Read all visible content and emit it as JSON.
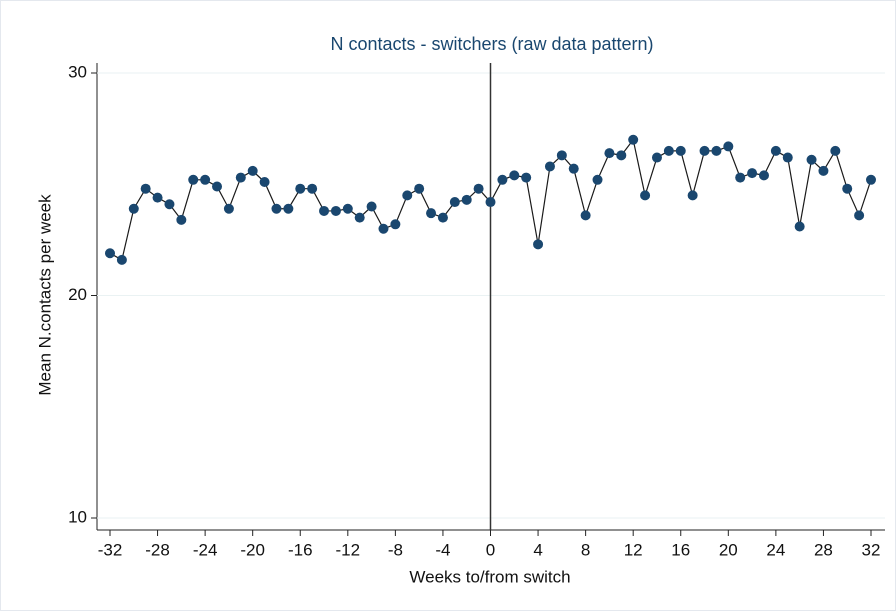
{
  "chart_data": {
    "type": "line",
    "title": "N contacts - switchers (raw data pattern)",
    "x_label": "Weeks to/from switch",
    "y_label": "Mean N.contacts per week",
    "x": [
      -32,
      -31,
      -30,
      -29,
      -28,
      -27,
      -26,
      -25,
      -24,
      -23,
      -22,
      -21,
      -20,
      -19,
      -18,
      -17,
      -16,
      -15,
      -14,
      -13,
      -12,
      -11,
      -10,
      -9,
      -8,
      -7,
      -6,
      -5,
      -4,
      -3,
      -2,
      -1,
      0,
      1,
      2,
      3,
      4,
      5,
      6,
      7,
      8,
      9,
      10,
      11,
      12,
      13,
      14,
      15,
      16,
      17,
      18,
      19,
      20,
      21,
      22,
      23,
      24,
      25,
      26,
      27,
      28,
      29,
      30,
      31,
      32
    ],
    "series": [
      {
        "name": "Mean N.contacts",
        "color": "#1a476f",
        "line_color": "#1a1a1a",
        "values": [
          21.9,
          21.6,
          23.9,
          24.8,
          24.4,
          24.1,
          23.4,
          25.2,
          25.2,
          24.9,
          23.9,
          25.3,
          25.6,
          25.1,
          23.9,
          23.9,
          24.8,
          24.8,
          23.8,
          23.8,
          23.9,
          23.5,
          24.0,
          23.0,
          23.2,
          24.5,
          24.8,
          23.7,
          23.5,
          24.2,
          24.3,
          24.8,
          24.2,
          25.2,
          25.4,
          25.3,
          22.3,
          25.8,
          26.3,
          25.7,
          23.6,
          25.2,
          26.4,
          26.3,
          27.0,
          24.5,
          26.2,
          26.5,
          26.5,
          24.5,
          26.5,
          26.5,
          26.7,
          25.3,
          25.5,
          25.4,
          26.5,
          26.2,
          23.1,
          26.1,
          25.6,
          26.5,
          24.8,
          23.6,
          25.2
        ]
      }
    ],
    "xlim": [
      -32,
      32
    ],
    "ylim": [
      10,
      30
    ],
    "xticks": [
      -32,
      -28,
      -24,
      -20,
      -16,
      -12,
      -8,
      -4,
      0,
      4,
      8,
      12,
      16,
      20,
      24,
      28,
      32
    ],
    "yticks": [
      10,
      20,
      30
    ],
    "grid": true,
    "vline": 0
  }
}
